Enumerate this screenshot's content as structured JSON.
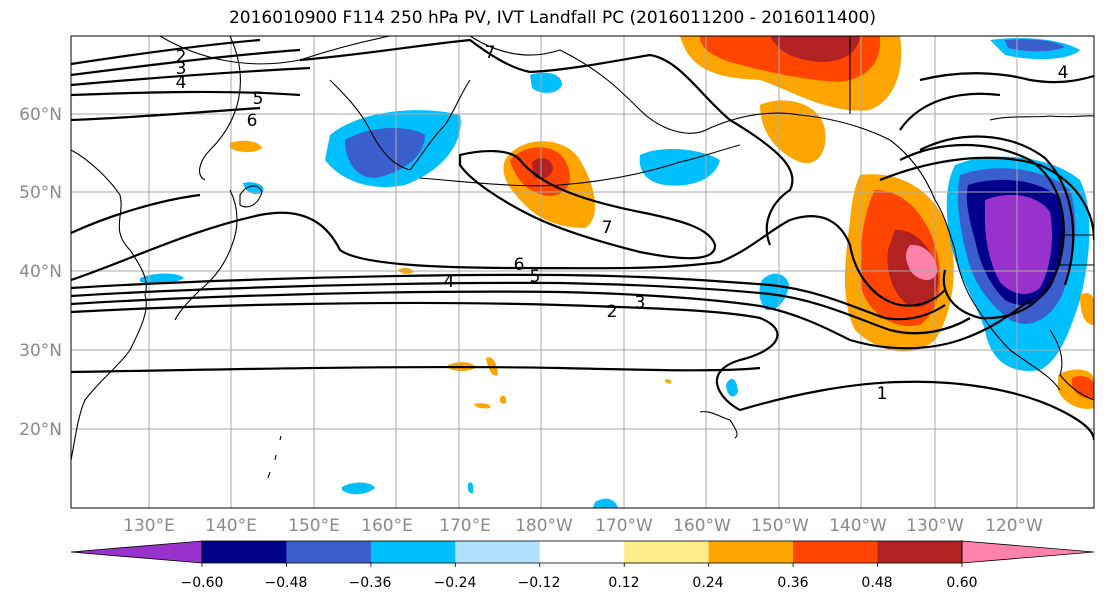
{
  "title": "2016010900 F114 250 hPa PV, IVT Landfall PC (2016011200 - 2016011400)",
  "lat_labels": [
    "60°N",
    "50°N",
    "40°N",
    "30°N",
    "20°N"
  ],
  "lon_labels": [
    "130°E",
    "140°E",
    "150°E",
    "160°E",
    "170°E",
    "180°W",
    "170°W",
    "160°W",
    "150°W",
    "140°W",
    "130°W",
    "120°W"
  ],
  "contour_labels": [
    "2",
    "3",
    "4",
    "5",
    "6",
    "7",
    "6",
    "5",
    "4",
    "3",
    "2",
    "7",
    "1",
    "4"
  ],
  "colorbar": {
    "ticks": [
      "−0.60",
      "−0.48",
      "−0.36",
      "−0.24",
      "−0.12",
      "0.12",
      "0.24",
      "0.36",
      "0.48",
      "0.60"
    ],
    "colors": [
      "#9932CC",
      "#00008B",
      "#3A5FCD",
      "#00BFFF",
      "#B0E2FF",
      "#FFFFFF",
      "#FFEC8B",
      "#FFA500",
      "#FF4500",
      "#B22222",
      "#FF82AB"
    ]
  }
}
